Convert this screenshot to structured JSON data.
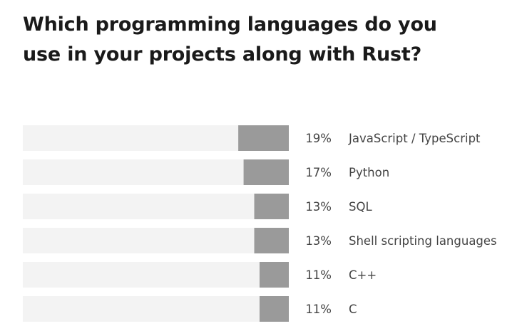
{
  "title_lines": [
    "Which programming languages do you",
    "use in your projects along with Rust?"
  ],
  "colors": {
    "track": "#f3f3f3",
    "bar": "#9a9a9a",
    "text": "#444444",
    "title": "#1a1a1a"
  },
  "chart_data": {
    "type": "bar",
    "orientation": "horizontal",
    "title": "Which programming languages do you use in your projects along with Rust?",
    "categories": [
      "JavaScript / TypeScript",
      "Python",
      "SQL",
      "Shell scripting languages",
      "C++",
      "C"
    ],
    "values": [
      19,
      17,
      13,
      13,
      11,
      11
    ],
    "value_labels": [
      "19%",
      "17%",
      "13%",
      "13%",
      "11%",
      "11%"
    ],
    "unit": "%",
    "xlim": [
      0,
      100
    ],
    "bar_direction": "right-to-left",
    "grid": false,
    "legend": "none"
  }
}
